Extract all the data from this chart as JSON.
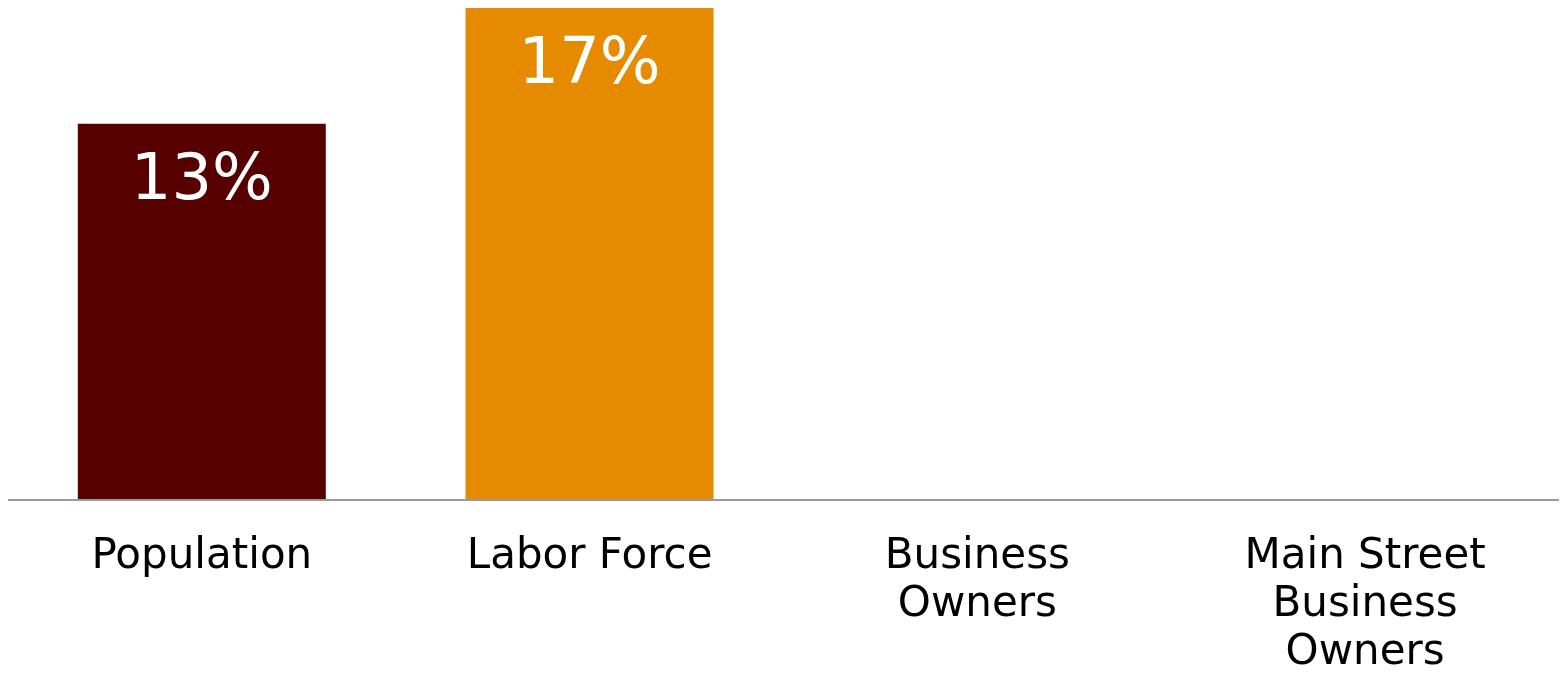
{
  "chart_data": {
    "type": "bar",
    "categories": [
      "Population",
      "Labor Force",
      "Business Owners",
      "Main Street Business Owners"
    ],
    "values": [
      13,
      17,
      null,
      null
    ],
    "colors": [
      "#560000",
      "#e68a00",
      "#e68a00",
      "#e68a00"
    ],
    "value_labels": [
      "13%",
      "17%",
      null,
      null
    ],
    "grid": false,
    "legend": false
  }
}
